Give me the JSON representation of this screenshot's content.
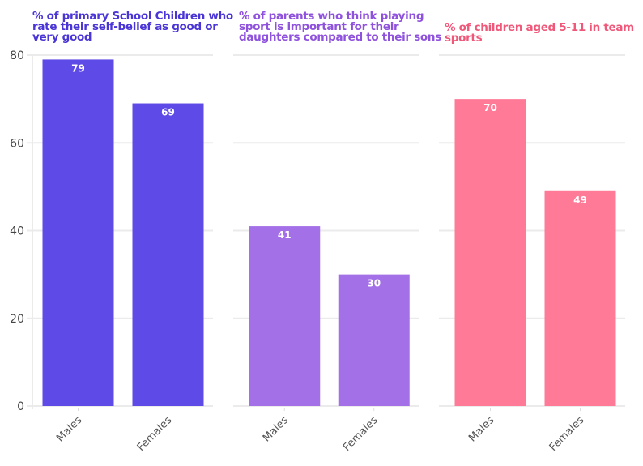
{
  "chart_data": [
    {
      "type": "bar",
      "title": "% of primary School Children who rate their self-belief as good or very good",
      "title_lines": [
        "% of primary School Children who",
        "rate their self-belief as good or",
        "very good"
      ],
      "categories": [
        "Males",
        "Females"
      ],
      "values": [
        79,
        69
      ],
      "color": "#5e4ae6",
      "title_color": "#4a35d6",
      "xlabel": "",
      "ylabel": "",
      "ylim": [
        0,
        80
      ],
      "yticks": [
        0,
        20,
        40,
        60,
        80
      ],
      "grid": true
    },
    {
      "type": "bar",
      "title": "% of parents who think playing sport is important for their daughters compared to their sons",
      "title_lines": [
        "% of parents who think playing",
        "sport is important for their",
        "daughters compared to their sons"
      ],
      "categories": [
        "Males",
        "Females"
      ],
      "values": [
        41,
        30
      ],
      "color": "#a470e8",
      "title_color": "#8f52dd",
      "xlabel": "",
      "ylabel": "",
      "ylim": [
        0,
        80
      ],
      "yticks": [
        0,
        20,
        40,
        60,
        80
      ],
      "grid": true
    },
    {
      "type": "bar",
      "title": "% of children aged 5-11 in team sports",
      "title_lines": [
        "% of children aged 5-11 in team",
        "sports"
      ],
      "categories": [
        "Males",
        "Females"
      ],
      "values": [
        70,
        49
      ],
      "color": "#ff7a96",
      "title_color": "#f0587a",
      "xlabel": "",
      "ylabel": "",
      "ylim": [
        0,
        80
      ],
      "yticks": [
        0,
        20,
        40,
        60,
        80
      ],
      "grid": true
    }
  ]
}
